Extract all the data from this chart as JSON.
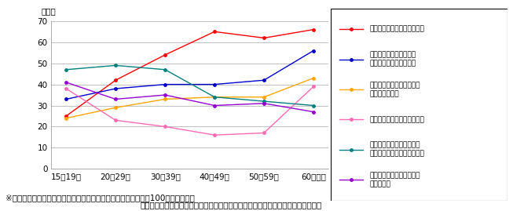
{
  "categories": [
    "15～19歳",
    "20～29歳",
    "30～39歳",
    "40～49歳",
    "50～59歳",
    "60歳以上"
  ],
  "series": [
    {
      "label": "宿泊施設（ホテル、旅館等）",
      "color": "#ff0000",
      "values": [
        25,
        42,
        54,
        65,
        62,
        66
      ]
    },
    {
      "label": "駅・空港及び新幹線等の\n長距離列車内や航空機内",
      "color": "#0000cd",
      "values": [
        33,
        38,
        40,
        40,
        42,
        56
      ]
    },
    {
      "label": "その他（デパート、家電量\n販店、海外等）",
      "color": "#ffa500",
      "values": [
        24,
        29,
        33,
        34,
        34,
        43
      ]
    },
    {
      "label": "公共施設（役所、図書館等）",
      "color": "#ff69b4",
      "values": [
        38,
        23,
        20,
        16,
        17,
        39
      ]
    },
    {
      "label": "飲食店（喫茶店・ファース\nトフード店・レストラン等）",
      "color": "#008080",
      "values": [
        47,
        49,
        47,
        34,
        32,
        30
      ]
    },
    {
      "label": "日常利用する交通機関内及\nび自動设内",
      "color": "#9400d3",
      "values": [
        41,
        33,
        35,
        30,
        31,
        27
      ]
    }
  ],
  "ylabel": "（％）",
  "ylim": [
    0,
    70
  ],
  "yticks": [
    0,
    10,
    20,
    30,
    40,
    50,
    60,
    70
  ],
  "note": "※　各年代における外出先でのインターネット利用者をそれぞれ100％として表示",
  "source": "（出典）「ユビキタスネットワーク社会の国民生活に関する調査」（ウェブ調査）",
  "background_color": "#ffffff",
  "grid_color": "#c0c0c0",
  "legend_fontsize": 6.5,
  "axis_fontsize": 7.5,
  "note_fontsize": 7.5,
  "source_fontsize": 7.5
}
